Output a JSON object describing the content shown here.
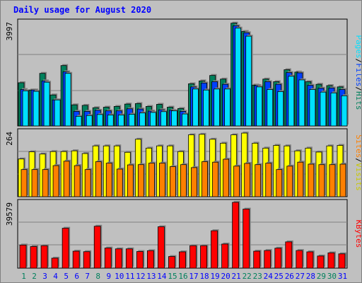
{
  "title": "Daily usage for August 2020",
  "colors": {
    "hits": "#00805c",
    "files": "#0040ff",
    "pages": "#00e0ff",
    "visits": "#ffff00",
    "sites": "#ff8000",
    "kbytes": "#ff0000",
    "weekend_label": "#00805c",
    "weekday_label": "#0000ff"
  },
  "chart_data": [
    {
      "type": "bar",
      "categories": [
        "1",
        "2",
        "3",
        "4",
        "5",
        "6",
        "7",
        "8",
        "9",
        "10",
        "11",
        "12",
        "13",
        "14",
        "15",
        "16",
        "17",
        "18",
        "19",
        "20",
        "21",
        "22",
        "23",
        "24",
        "25",
        "26",
        "27",
        "28",
        "29",
        "30",
        "31"
      ],
      "weekend_days": [
        "1",
        "2",
        "8",
        "15",
        "16",
        "22",
        "23",
        "29",
        "30"
      ],
      "axis_max_label": "3997",
      "ylim": [
        0,
        3997
      ],
      "legend": [
        "Pages",
        "Files",
        "Hits"
      ],
      "series": [
        {
          "name": "Hits",
          "values": [
            1660,
            1380,
            2020,
            1190,
            2320,
            810,
            790,
            700,
            720,
            750,
            840,
            860,
            750,
            830,
            720,
            670,
            1620,
            1730,
            1940,
            1800,
            3950,
            3630,
            1570,
            1800,
            1700,
            2160,
            2070,
            1700,
            1600,
            1550,
            1500
          ]
        },
        {
          "name": "Files",
          "values": [
            1400,
            1380,
            1730,
            1000,
            2080,
            560,
            560,
            600,
            580,
            580,
            660,
            650,
            570,
            620,
            600,
            560,
            1500,
            1650,
            1700,
            1600,
            3850,
            3580,
            1550,
            1700,
            1600,
            2050,
            2040,
            1560,
            1450,
            1460,
            1400
          ]
        },
        {
          "name": "Pages",
          "values": [
            1350,
            1330,
            1680,
            1000,
            2020,
            370,
            400,
            440,
            420,
            420,
            450,
            500,
            520,
            550,
            580,
            460,
            1420,
            1380,
            1420,
            1420,
            3760,
            3450,
            1500,
            1400,
            1320,
            1910,
            1770,
            1400,
            1300,
            1270,
            1160
          ]
        }
      ]
    },
    {
      "type": "bar",
      "categories": [
        "1",
        "2",
        "3",
        "4",
        "5",
        "6",
        "7",
        "8",
        "9",
        "10",
        "11",
        "12",
        "13",
        "14",
        "15",
        "16",
        "17",
        "18",
        "19",
        "20",
        "21",
        "22",
        "23",
        "24",
        "25",
        "26",
        "27",
        "28",
        "29",
        "30",
        "31"
      ],
      "axis_max_label": "264",
      "ylim": [
        0,
        264
      ],
      "legend": [
        "Sites",
        "Visits"
      ],
      "series": [
        {
          "name": "Visits",
          "values": [
            153,
            182,
            173,
            183,
            183,
            186,
            175,
            206,
            206,
            206,
            180,
            233,
            197,
            206,
            206,
            183,
            251,
            253,
            233,
            217,
            251,
            258,
            217,
            197,
            208,
            206,
            186,
            197,
            181,
            206,
            208
          ]
        },
        {
          "name": "Sites",
          "values": [
            110,
            110,
            110,
            126,
            144,
            126,
            110,
            142,
            136,
            112,
            129,
            130,
            136,
            136,
            122,
            130,
            118,
            142,
            140,
            152,
            124,
            135,
            130,
            136,
            110,
            124,
            140,
            132,
            130,
            130,
            132
          ]
        }
      ]
    },
    {
      "type": "bar",
      "categories": [
        "1",
        "2",
        "3",
        "4",
        "5",
        "6",
        "7",
        "8",
        "9",
        "10",
        "11",
        "12",
        "13",
        "14",
        "15",
        "16",
        "17",
        "18",
        "19",
        "20",
        "21",
        "22",
        "23",
        "24",
        "25",
        "26",
        "27",
        "28",
        "29",
        "30",
        "31"
      ],
      "axis_max_label": "39579",
      "ylim": [
        0,
        39579
      ],
      "legend": [
        "KBytes"
      ],
      "series": [
        {
          "name": "KBytes",
          "values": [
            13900,
            13000,
            13500,
            6000,
            24000,
            10200,
            9900,
            25200,
            12100,
            11600,
            11600,
            10000,
            10500,
            24900,
            7000,
            9800,
            13500,
            13500,
            22500,
            14500,
            39579,
            35500,
            10200,
            10600,
            12000,
            15800,
            10600,
            9800,
            7300,
            9200,
            8600
          ]
        }
      ]
    }
  ]
}
